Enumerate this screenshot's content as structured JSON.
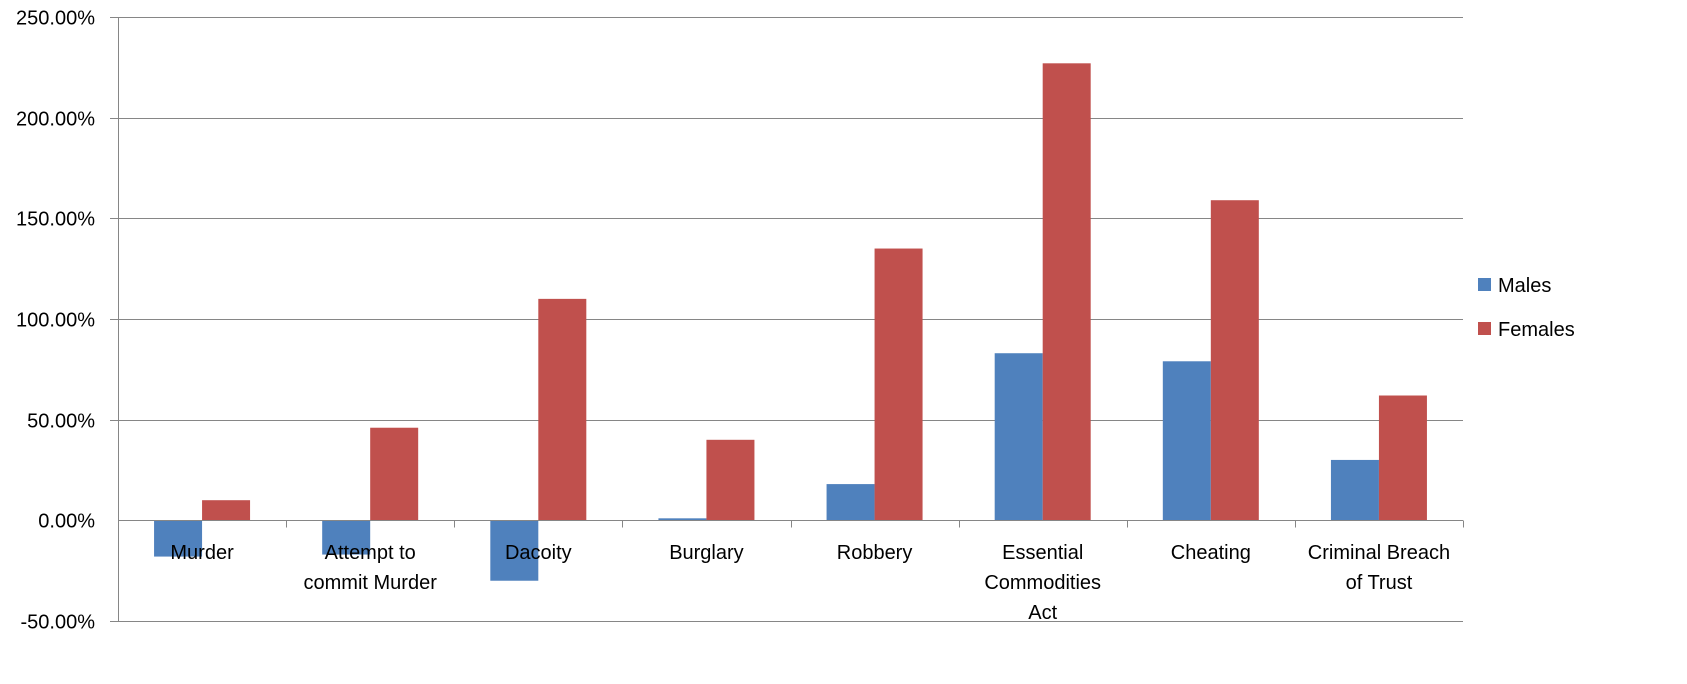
{
  "chart_data": {
    "type": "bar",
    "categories": [
      [
        "Murder"
      ],
      [
        "Attempt to",
        "commit Murder"
      ],
      [
        "Dacoity"
      ],
      [
        "Burglary"
      ],
      [
        "Robbery"
      ],
      [
        "Essential",
        "Commodities",
        "Act"
      ],
      [
        "Cheating"
      ],
      [
        "Criminal Breach",
        "of Trust"
      ]
    ],
    "series": [
      {
        "name": "Males",
        "color": "#4F81BD",
        "values": [
          -0.18,
          -0.17,
          -0.3,
          0.01,
          0.18,
          0.83,
          0.79,
          0.3
        ]
      },
      {
        "name": "Females",
        "color": "#C0504D",
        "values": [
          0.1,
          0.46,
          1.1,
          0.4,
          1.35,
          2.27,
          1.59,
          0.62
        ]
      }
    ],
    "ylim": [
      -0.5,
      2.5
    ],
    "yticks": [
      -0.5,
      0,
      0.5,
      1.0,
      1.5,
      2.0,
      2.5
    ],
    "ytick_labels": [
      "-50.00%",
      "0.00%",
      "50.00%",
      "100.00%",
      "150.00%",
      "200.00%",
      "250.00%"
    ],
    "grid": true,
    "legend_position": "right",
    "title": "",
    "xlabel": "",
    "ylabel": ""
  }
}
